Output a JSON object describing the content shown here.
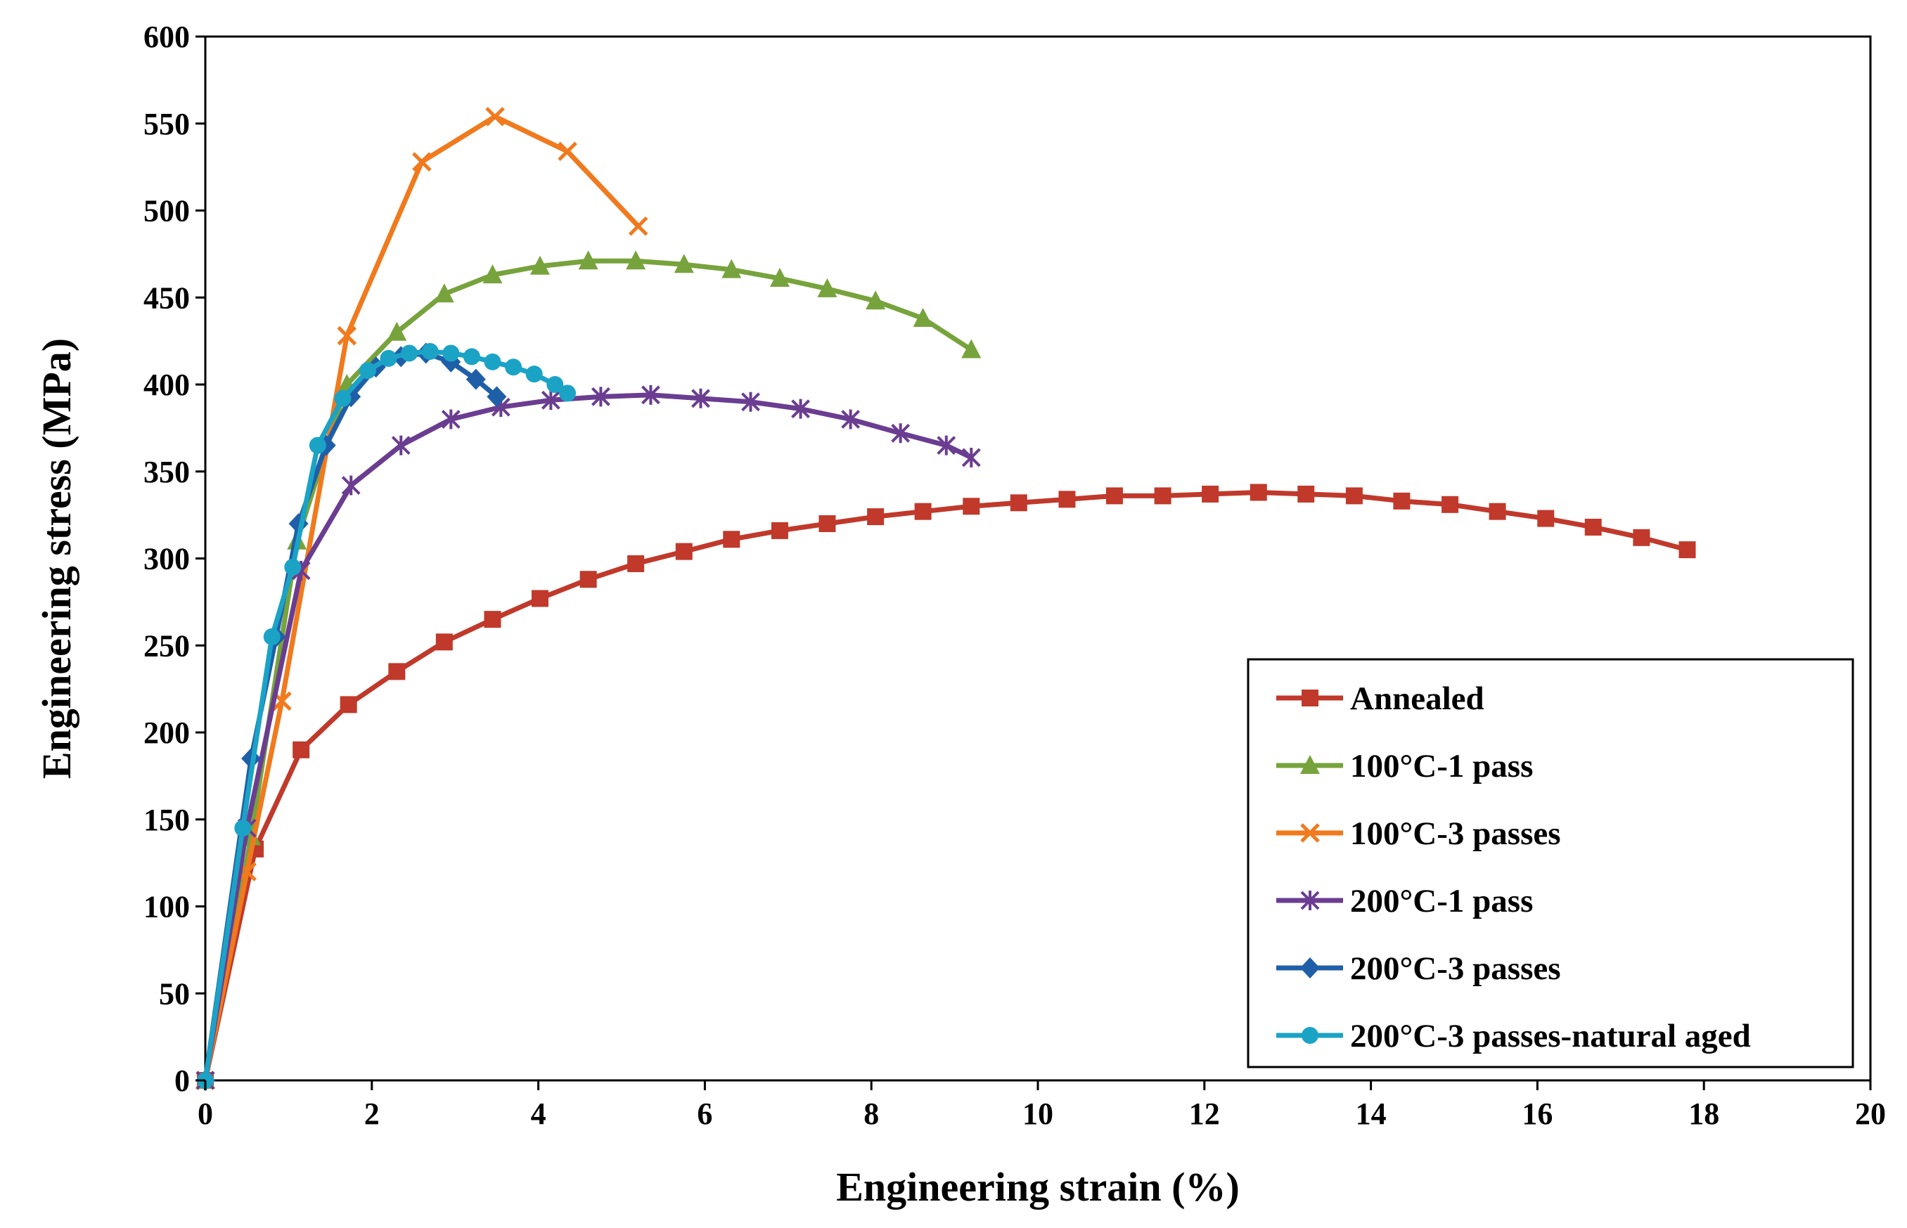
{
  "chart_data": {
    "type": "line",
    "title": "",
    "xlabel": "Engineering strain (%)",
    "ylabel": "Engineering stress (MPa)",
    "xlim": [
      0,
      20
    ],
    "ylim": [
      0,
      600
    ],
    "xticks": [
      0,
      2,
      4,
      6,
      8,
      10,
      12,
      14,
      16,
      18,
      20
    ],
    "yticks": [
      0,
      50,
      100,
      150,
      200,
      250,
      300,
      350,
      400,
      450,
      500,
      550,
      600
    ],
    "grid": false,
    "legend_position": "bottom-right",
    "series": [
      {
        "name": "Annealed",
        "color": "#c0392b",
        "marker": "square",
        "points": [
          [
            0,
            0
          ],
          [
            0.6,
            133
          ],
          [
            1.15,
            190
          ],
          [
            1.72,
            216
          ],
          [
            2.3,
            235
          ],
          [
            2.87,
            252
          ],
          [
            3.45,
            265
          ],
          [
            4.02,
            277
          ],
          [
            4.6,
            288
          ],
          [
            5.17,
            297
          ],
          [
            5.75,
            304
          ],
          [
            6.32,
            311
          ],
          [
            6.9,
            316
          ],
          [
            7.47,
            320
          ],
          [
            8.05,
            324
          ],
          [
            8.62,
            327
          ],
          [
            9.2,
            330
          ],
          [
            9.77,
            332
          ],
          [
            10.35,
            334
          ],
          [
            10.92,
            336
          ],
          [
            11.5,
            336
          ],
          [
            12.07,
            337
          ],
          [
            12.65,
            338
          ],
          [
            13.22,
            337
          ],
          [
            13.8,
            336
          ],
          [
            14.37,
            333
          ],
          [
            14.95,
            331
          ],
          [
            15.52,
            327
          ],
          [
            16.1,
            323
          ],
          [
            16.67,
            318
          ],
          [
            17.25,
            312
          ],
          [
            17.8,
            305
          ]
        ]
      },
      {
        "name": "100°C-1 pass",
        "color": "#77a33c",
        "marker": "triangle",
        "points": [
          [
            0,
            0
          ],
          [
            0.55,
            140
          ],
          [
            1.1,
            310
          ],
          [
            1.7,
            400
          ],
          [
            2.3,
            430
          ],
          [
            2.87,
            452
          ],
          [
            3.45,
            463
          ],
          [
            4.02,
            468
          ],
          [
            4.6,
            471
          ],
          [
            5.17,
            471
          ],
          [
            5.75,
            469
          ],
          [
            6.32,
            466
          ],
          [
            6.9,
            461
          ],
          [
            7.47,
            455
          ],
          [
            8.05,
            448
          ],
          [
            8.62,
            438
          ],
          [
            9.2,
            420
          ]
        ]
      },
      {
        "name": "100°C-3 passes",
        "color": "#f07a1d",
        "marker": "x",
        "points": [
          [
            0,
            0
          ],
          [
            0.5,
            120
          ],
          [
            0.92,
            218
          ],
          [
            1.7,
            428
          ],
          [
            2.6,
            528
          ],
          [
            3.48,
            554
          ],
          [
            4.35,
            534
          ],
          [
            5.2,
            491
          ]
        ]
      },
      {
        "name": "200°C-1 pass",
        "color": "#6a3d91",
        "marker": "star",
        "points": [
          [
            0,
            0
          ],
          [
            0.5,
            145
          ],
          [
            1.15,
            293
          ],
          [
            1.75,
            342
          ],
          [
            2.35,
            365
          ],
          [
            2.95,
            380
          ],
          [
            3.55,
            387
          ],
          [
            4.15,
            391
          ],
          [
            4.75,
            393
          ],
          [
            5.35,
            394
          ],
          [
            5.95,
            392
          ],
          [
            6.55,
            390
          ],
          [
            7.15,
            386
          ],
          [
            7.75,
            380
          ],
          [
            8.35,
            372
          ],
          [
            8.9,
            365
          ],
          [
            9.2,
            358
          ]
        ]
      },
      {
        "name": "200°C-3 passes",
        "color": "#1e5fa8",
        "marker": "diamond",
        "points": [
          [
            0,
            0
          ],
          [
            0.55,
            185
          ],
          [
            0.85,
            255
          ],
          [
            1.12,
            320
          ],
          [
            1.45,
            365
          ],
          [
            1.75,
            393
          ],
          [
            2.05,
            410
          ],
          [
            2.35,
            416
          ],
          [
            2.65,
            418
          ],
          [
            2.95,
            413
          ],
          [
            3.25,
            403
          ],
          [
            3.5,
            393
          ]
        ]
      },
      {
        "name": "200°C-3 passes-natural aged",
        "color": "#1ba3c6",
        "marker": "circle",
        "points": [
          [
            0,
            0
          ],
          [
            0.45,
            145
          ],
          [
            0.8,
            255
          ],
          [
            1.05,
            295
          ],
          [
            1.35,
            365
          ],
          [
            1.65,
            392
          ],
          [
            1.95,
            408
          ],
          [
            2.2,
            415
          ],
          [
            2.45,
            418
          ],
          [
            2.7,
            419
          ],
          [
            2.95,
            418
          ],
          [
            3.2,
            416
          ],
          [
            3.45,
            413
          ],
          [
            3.7,
            410
          ],
          [
            3.95,
            406
          ],
          [
            4.2,
            400
          ],
          [
            4.35,
            395
          ]
        ]
      }
    ]
  }
}
